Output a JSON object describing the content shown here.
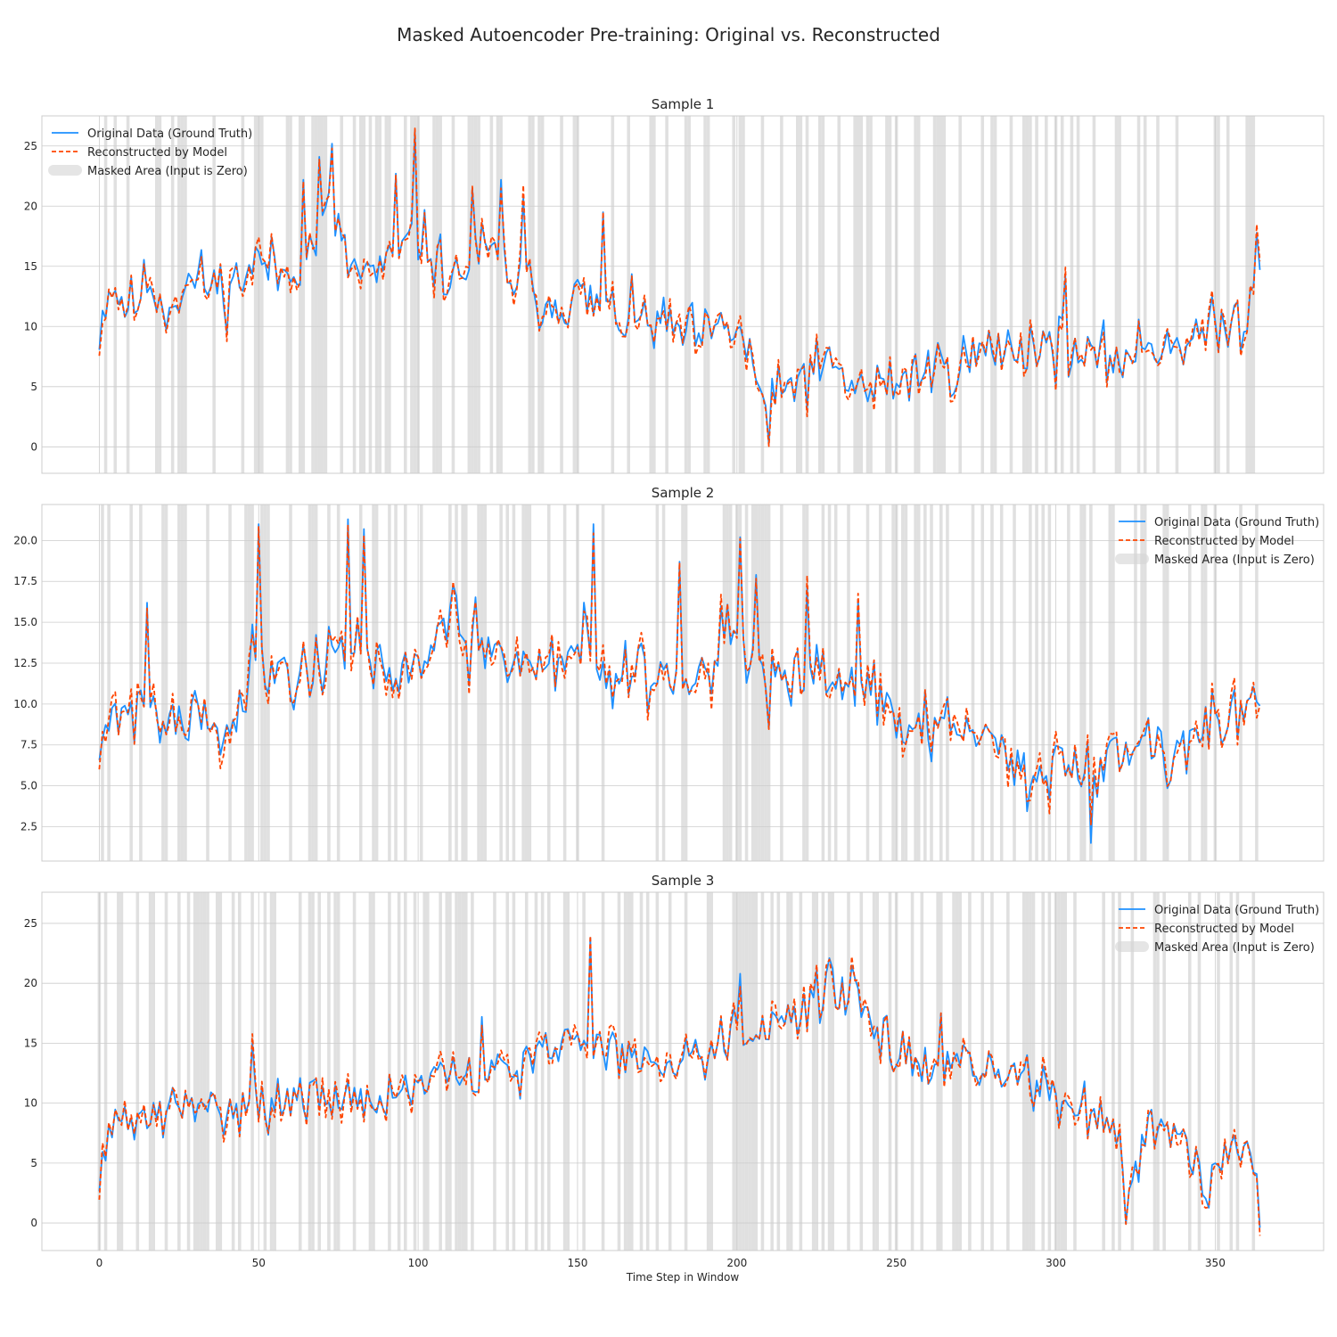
{
  "figure": {
    "title": "Masked Autoencoder Pre-training: Original vs. Reconstructed",
    "xlabel": "Time Step in Window",
    "x_ticks": [
      0,
      50,
      100,
      150,
      200,
      250,
      300,
      350
    ]
  },
  "legend_labels": {
    "original": "Original Data (Ground Truth)",
    "reconstructed": "Reconstructed by Model",
    "masked": "Masked Area (Input is Zero)"
  },
  "colors": {
    "original": "#1e90ff",
    "reconstructed": "#ff4500",
    "mask": "#d3d3d3",
    "grid": "#cccccc",
    "frame": "#cccccc"
  },
  "chart_data": [
    {
      "type": "line",
      "title": "Sample 1",
      "xlim": [
        -18,
        384
      ],
      "ylim": [
        -2.2,
        27.5
      ],
      "y_ticks": [
        0,
        5,
        10,
        15,
        20,
        25
      ],
      "legend_position": "top-left",
      "grid": true,
      "masked_steps": [
        2,
        5,
        9,
        18,
        19,
        23,
        25,
        26,
        27,
        36,
        45,
        49,
        50,
        51,
        59,
        60,
        63,
        64,
        67,
        68,
        69,
        70,
        71,
        76,
        80,
        82,
        83,
        85,
        87,
        88,
        90,
        91,
        96,
        98,
        99,
        100,
        105,
        106,
        107,
        111,
        116,
        117,
        118,
        119,
        123,
        125,
        126,
        135,
        136,
        138,
        139,
        145,
        149,
        150,
        161,
        166,
        173,
        174,
        178,
        184,
        185,
        190,
        191,
        199,
        201,
        202,
        208,
        214,
        219,
        220,
        222,
        226,
        227,
        232,
        237,
        238,
        239,
        241,
        242,
        247,
        248,
        250,
        256,
        257,
        262,
        263,
        264,
        265,
        270,
        277,
        280,
        281,
        286,
        290,
        291,
        292,
        294,
        297,
        300,
        302,
        305,
        307,
        312,
        319,
        320,
        326,
        328,
        332,
        338,
        350,
        351,
        354,
        360,
        361,
        362
      ],
      "series": [
        {
          "name": "Original Data (Ground Truth)",
          "anchors": [
            [
              0,
              9.7
            ],
            [
              3,
              13.5
            ],
            [
              10,
              11.5
            ],
            [
              16,
              14
            ],
            [
              20,
              11.5
            ],
            [
              30,
              14
            ],
            [
              40,
              13
            ],
            [
              50,
              15.5
            ],
            [
              58,
              14.2
            ],
            [
              62,
              15.5
            ],
            [
              67,
              16.5
            ],
            [
              73,
              20
            ],
            [
              77,
              15.5
            ],
            [
              82,
              14.5
            ],
            [
              90,
              14.5
            ],
            [
              96,
              16.5
            ],
            [
              100,
              17.5
            ],
            [
              108,
              14.8
            ],
            [
              112,
              13.5
            ],
            [
              118,
              16.5
            ],
            [
              124,
              15.5
            ],
            [
              130,
              14
            ],
            [
              140,
              12
            ],
            [
              150,
              12.5
            ],
            [
              160,
              11
            ],
            [
              170,
              10.5
            ],
            [
              182,
              9.5
            ],
            [
              190,
              9
            ],
            [
              200,
              10
            ],
            [
              205,
              6.5
            ],
            [
              210,
              3
            ],
            [
              220,
              6
            ],
            [
              230,
              6.5
            ],
            [
              240,
              4.5
            ],
            [
              250,
              5.5
            ],
            [
              260,
              6.5
            ],
            [
              270,
              7
            ],
            [
              280,
              8
            ],
            [
              290,
              8.5
            ],
            [
              300,
              8.5
            ],
            [
              310,
              7
            ],
            [
              320,
              7.5
            ],
            [
              330,
              8.5
            ],
            [
              340,
              9
            ],
            [
              350,
              9.5
            ],
            [
              360,
              11
            ],
            [
              364,
              16
            ]
          ],
          "noise": 2.6,
          "seed": 11
        },
        {
          "name": "Reconstructed by Model",
          "follows": "Original Data (Ground Truth)",
          "deviation": 0.9,
          "seed": 12
        }
      ],
      "spikes": [
        [
          64,
          22.2
        ],
        [
          69,
          24.1
        ],
        [
          73,
          25.2
        ],
        [
          93,
          22.7
        ],
        [
          99,
          26.3
        ],
        [
          117,
          21.5
        ],
        [
          126,
          22.2
        ],
        [
          133,
          20.8
        ],
        [
          158,
          19.5
        ],
        [
          210,
          0.2
        ],
        [
          303,
          14.2
        ],
        [
          363,
          17.8
        ]
      ]
    },
    {
      "type": "line",
      "title": "Sample 2",
      "xlim": [
        -18,
        384
      ],
      "ylim": [
        0.4,
        22.2
      ],
      "y_ticks": [
        2.5,
        5.0,
        7.5,
        10.0,
        12.5,
        15.0,
        17.5,
        20.0
      ],
      "legend_position": "top-right",
      "grid": true,
      "masked_steps": [
        1,
        3,
        10,
        13,
        20,
        21,
        25,
        26,
        27,
        34,
        41,
        46,
        47,
        48,
        51,
        52,
        53,
        60,
        66,
        67,
        68,
        72,
        75,
        82,
        86,
        87,
        91,
        93,
        96,
        101,
        110,
        112,
        114,
        115,
        119,
        120,
        121,
        126,
        128,
        130,
        133,
        134,
        135,
        141,
        146,
        150,
        158,
        175,
        177,
        183,
        184,
        196,
        197,
        198,
        200,
        201,
        203,
        205,
        206,
        207,
        208,
        209,
        210,
        214,
        221,
        222,
        227,
        229,
        231,
        235,
        241,
        245,
        249,
        250,
        252,
        253,
        256,
        257,
        259,
        261,
        264,
        266,
        274,
        277,
        280,
        283,
        287,
        292,
        294,
        296,
        298,
        304,
        308,
        309,
        311,
        317,
        318,
        325,
        327,
        328,
        334,
        335,
        342,
        346,
        347,
        350,
        358,
        363
      ],
      "series": [
        {
          "name": "Original Data (Ground Truth)",
          "anchors": [
            [
              0,
              8.5
            ],
            [
              10,
              10
            ],
            [
              20,
              9
            ],
            [
              30,
              9.5
            ],
            [
              40,
              8.5
            ],
            [
              50,
              13
            ],
            [
              60,
              11.5
            ],
            [
              70,
              13
            ],
            [
              80,
              13.5
            ],
            [
              90,
              11.5
            ],
            [
              100,
              12.5
            ],
            [
              110,
              15
            ],
            [
              120,
              13
            ],
            [
              130,
              12.5
            ],
            [
              140,
              12.5
            ],
            [
              150,
              14
            ],
            [
              160,
              11.5
            ],
            [
              170,
              12.5
            ],
            [
              180,
              11.5
            ],
            [
              190,
              12.5
            ],
            [
              200,
              14
            ],
            [
              210,
              11.5
            ],
            [
              220,
              11
            ],
            [
              230,
              11.5
            ],
            [
              240,
              11
            ],
            [
              250,
              8.5
            ],
            [
              260,
              9
            ],
            [
              270,
              8.5
            ],
            [
              280,
              7.5
            ],
            [
              290,
              5.5
            ],
            [
              300,
              6.5
            ],
            [
              310,
              5.5
            ],
            [
              320,
              7.5
            ],
            [
              330,
              7.5
            ],
            [
              340,
              8
            ],
            [
              350,
              8.5
            ],
            [
              364,
              9.5
            ]
          ],
          "noise": 2.2,
          "seed": 21
        },
        {
          "name": "Reconstructed by Model",
          "follows": "Original Data (Ground Truth)",
          "deviation": 0.85,
          "seed": 22
        }
      ],
      "spikes": [
        [
          15,
          16.2
        ],
        [
          50,
          21
        ],
        [
          78,
          21.3
        ],
        [
          83,
          20.7
        ],
        [
          155,
          21
        ],
        [
          182,
          18.7
        ],
        [
          201,
          20.2
        ],
        [
          206,
          17.9
        ],
        [
          222,
          17.1
        ],
        [
          238,
          16.4
        ],
        [
          311,
          1.5
        ]
      ]
    },
    {
      "type": "line",
      "title": "Sample 3",
      "xlim": [
        -18,
        384
      ],
      "ylim": [
        -2.3,
        27.6
      ],
      "y_ticks": [
        0,
        5,
        10,
        15,
        20,
        25
      ],
      "legend_position": "top-right",
      "grid": true,
      "masked_steps": [
        0,
        2,
        6,
        7,
        12,
        16,
        17,
        21,
        25,
        28,
        30,
        31,
        32,
        33,
        34,
        37,
        38,
        42,
        44,
        48,
        52,
        54,
        55,
        63,
        66,
        67,
        69,
        72,
        74,
        75,
        80,
        85,
        86,
        91,
        94,
        96,
        99,
        102,
        103,
        107,
        109,
        110,
        112,
        113,
        114,
        115,
        117,
        124,
        128,
        130,
        134,
        137,
        139,
        141,
        146,
        147,
        152,
        158,
        163,
        165,
        166,
        167,
        170,
        172,
        175,
        179,
        184,
        191,
        192,
        199,
        200,
        201,
        202,
        203,
        204,
        205,
        206,
        208,
        211,
        213,
        216,
        217,
        220,
        224,
        225,
        227,
        229,
        230,
        235,
        239,
        243,
        244,
        248,
        250,
        255,
        258,
        263,
        264,
        268,
        269,
        270,
        273,
        277,
        280,
        285,
        290,
        291,
        292,
        293,
        296,
        298,
        300,
        301,
        302,
        303,
        306,
        315,
        318,
        320,
        324,
        331,
        332,
        334,
        342,
        345,
        351,
        355,
        357,
        362
      ],
      "series": [
        {
          "name": "Original Data (Ground Truth)",
          "anchors": [
            [
              0,
              5
            ],
            [
              5,
              8
            ],
            [
              15,
              9
            ],
            [
              30,
              9.5
            ],
            [
              45,
              10
            ],
            [
              60,
              10
            ],
            [
              75,
              10.5
            ],
            [
              90,
              10.5
            ],
            [
              105,
              12
            ],
            [
              120,
              12
            ],
            [
              135,
              13.5
            ],
            [
              150,
              15.5
            ],
            [
              160,
              15
            ],
            [
              170,
              13
            ],
            [
              180,
              14
            ],
            [
              190,
              14.5
            ],
            [
              200,
              16
            ],
            [
              210,
              16.5
            ],
            [
              220,
              18
            ],
            [
              230,
              19.5
            ],
            [
              240,
              17.5
            ],
            [
              250,
              14
            ],
            [
              260,
              13
            ],
            [
              270,
              13.5
            ],
            [
              280,
              12
            ],
            [
              290,
              12.5
            ],
            [
              300,
              10.5
            ],
            [
              310,
              9
            ],
            [
              320,
              8
            ],
            [
              322,
              2
            ],
            [
              330,
              9
            ],
            [
              340,
              7.5
            ],
            [
              348,
              2
            ],
            [
              352,
              5.5
            ],
            [
              360,
              8
            ],
            [
              364,
              2
            ]
          ],
          "noise": 2.1,
          "seed": 31
        },
        {
          "name": "Reconstructed by Model",
          "follows": "Original Data (Ground Truth)",
          "deviation": 0.9,
          "seed": 32
        }
      ],
      "spikes": [
        [
          48,
          15
        ],
        [
          120,
          17.2
        ],
        [
          154,
          23.8
        ],
        [
          201,
          20.8
        ],
        [
          229,
          22.1
        ],
        [
          236,
          21.5
        ],
        [
          247,
          17.3
        ],
        [
          264,
          17.5
        ]
      ]
    }
  ]
}
